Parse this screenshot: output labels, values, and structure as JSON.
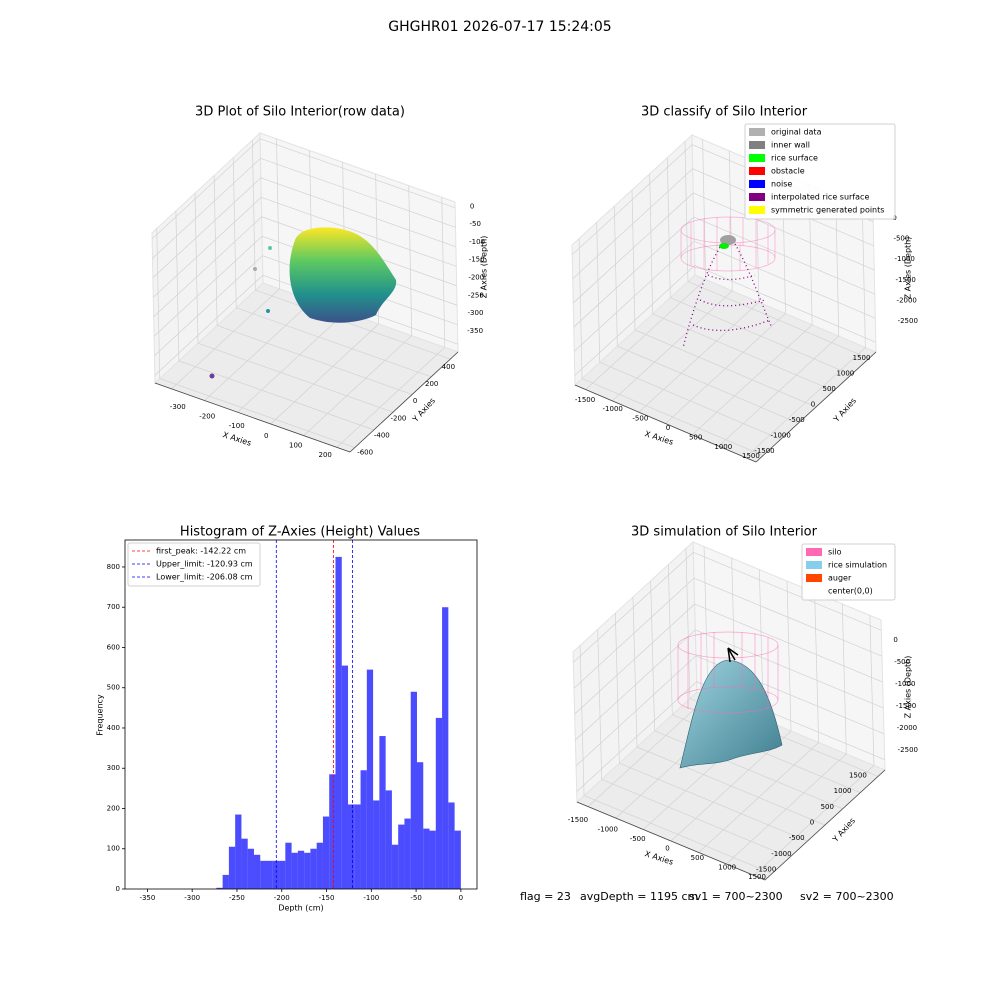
{
  "title": "GHGHR01 2026-07-17 15:24:05",
  "footer": [
    "flag = 23",
    "avgDepth = 1195 cm",
    "sv1 = 700~2300",
    "sv2 = 700~2300"
  ],
  "chart_data": [
    {
      "type": "scatter3d",
      "title": "3D Plot of Silo Interior(row data)",
      "xlabel": "X Axies",
      "ylabel": "Y Axies",
      "zlabel": "Z Axies (Depth)",
      "xlim": [
        -350,
        240
      ],
      "xticks": [
        -300,
        -200,
        -100,
        0,
        100,
        200
      ],
      "ylim": [
        -650,
        480
      ],
      "yticks": [
        -600,
        -400,
        -200,
        0,
        200,
        400
      ],
      "zlim": [
        -370,
        15
      ],
      "zticks": [
        0,
        -50,
        -100,
        -150,
        -200,
        -250,
        -300,
        -350
      ]
    },
    {
      "type": "scatter3d",
      "title": "3D classify of Silo Interior",
      "xlabel": "X Axies",
      "ylabel": "Y Axies",
      "zlabel": "Z Axies (Depth)",
      "xlim": [
        -1700,
        1700
      ],
      "xticks": [
        -1500,
        -1000,
        -500,
        0,
        500,
        1000,
        1500
      ],
      "ylim": [
        -1700,
        1700
      ],
      "yticks": [
        -1500,
        -1000,
        -500,
        0,
        500,
        1000,
        1500
      ],
      "zlim": [
        -2700,
        200
      ],
      "zticks": [
        0,
        -500,
        -1000,
        -1500,
        -2000,
        -2500
      ],
      "legend": [
        {
          "name": "original data",
          "color": "#b0b0b0"
        },
        {
          "name": "inner wall",
          "color": "#808080"
        },
        {
          "name": "rice surface",
          "color": "#00ff00"
        },
        {
          "name": "obstacle",
          "color": "#ff0000"
        },
        {
          "name": "noise",
          "color": "#0000ff"
        },
        {
          "name": "interpolated rice surface",
          "color": "#800080"
        },
        {
          "name": "symmetric generated points",
          "color": "#ffff00"
        }
      ]
    },
    {
      "type": "histogram",
      "title": "Histogram of Z-Axies (Height) Values",
      "xlabel": "Depth (cm)",
      "ylabel": "Frequency",
      "color": "#0000ff",
      "bins": [
        -350,
        -343,
        -336,
        -329,
        -322,
        -315,
        -308,
        -301,
        -294,
        -287,
        -280,
        -273,
        -266,
        -259,
        -252,
        -245,
        -238,
        -231,
        -224,
        -217,
        -210,
        -203,
        -196,
        -189,
        -182,
        -175,
        -168,
        -161,
        -154,
        -147,
        -140,
        -133,
        -126,
        -119,
        -112,
        -105,
        -98,
        -91,
        -84,
        -77,
        -70,
        -63,
        -56,
        -49,
        -42,
        -35,
        -28,
        -21,
        -14,
        -7,
        0
      ],
      "counts": [
        0,
        0,
        0,
        0,
        0,
        0,
        0,
        0,
        0,
        0,
        0,
        3,
        35,
        105,
        185,
        125,
        100,
        85,
        70,
        70,
        70,
        70,
        115,
        90,
        95,
        90,
        100,
        115,
        180,
        285,
        825,
        555,
        210,
        210,
        295,
        545,
        220,
        380,
        245,
        110,
        160,
        175,
        490,
        315,
        150,
        145,
        425,
        700,
        215,
        145
      ],
      "xlim": [
        -375,
        18
      ],
      "xticks": [
        -350,
        -300,
        -250,
        -200,
        -150,
        -100,
        -50,
        0
      ],
      "ylim": [
        0,
        867
      ],
      "yticks": [
        0,
        100,
        200,
        300,
        400,
        500,
        600,
        700,
        800
      ],
      "lines": [
        {
          "name": "first_peak: -142.22 cm",
          "value": -142.22,
          "color": "#ff0000"
        },
        {
          "name": "Upper_limit: -120.93 cm",
          "value": -120.93,
          "color": "#0000ff"
        },
        {
          "name": "Lower_limit: -206.08 cm",
          "value": -206.08,
          "color": "#0000ff"
        }
      ]
    },
    {
      "type": "surface3d",
      "title": "3D simulation of Silo Interior",
      "xlabel": "X Axies",
      "ylabel": "Y Axies",
      "zlabel": "Z Axies (Depth)",
      "xlim": [
        -1700,
        1700
      ],
      "xticks": [
        -1500,
        -1000,
        -500,
        0,
        500,
        1000,
        1500
      ],
      "ylim": [
        -1700,
        1700
      ],
      "yticks": [
        -1500,
        -1000,
        -500,
        0,
        500,
        1000,
        1500
      ],
      "zlim": [
        -2700,
        200
      ],
      "zticks": [
        0,
        -500,
        -1000,
        -1500,
        -2000,
        -2500
      ],
      "legend": [
        {
          "name": "silo",
          "color": "#ff69b4"
        },
        {
          "name": "rice simulation",
          "color": "#87ceeb"
        },
        {
          "name": "auger",
          "color": "#ff4500"
        },
        {
          "name": "center(0,0)",
          "color": "#ffffff"
        }
      ]
    }
  ]
}
